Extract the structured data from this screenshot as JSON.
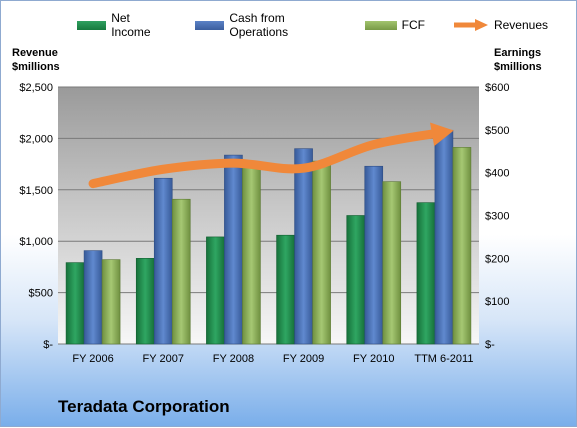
{
  "legend": [
    {
      "label": "Net Income",
      "color": "#1f8a4c"
    },
    {
      "label": "Cash from Operations",
      "color": "#4a70b4"
    },
    {
      "label": "FCF",
      "color": "#8db05a"
    },
    {
      "label": "Revenues",
      "color": "#f0883a"
    }
  ],
  "left_axis_title": [
    "Revenue",
    "$millions"
  ],
  "right_axis_title": [
    "Earnings",
    "$millions"
  ],
  "chart_data": {
    "type": "bar",
    "title": "Teradata Corporation",
    "categories": [
      "FY 2006",
      "FY 2007",
      "FY 2008",
      "FY 2009",
      "FY 2010",
      "TTM 6-2011"
    ],
    "series": [
      {
        "name": "Net Income",
        "axis": "right",
        "type": "bar",
        "color": "#1f8a4c",
        "values": [
          190,
          200,
          250,
          254,
          300,
          330
        ]
      },
      {
        "name": "Cash from Operations",
        "axis": "right",
        "type": "bar",
        "color": "#4a70b4",
        "values": [
          218,
          387,
          441,
          456,
          415,
          499
        ]
      },
      {
        "name": "FCF",
        "axis": "right",
        "type": "bar",
        "color": "#8db05a",
        "values": [
          197,
          338,
          422,
          427,
          379,
          459
        ]
      },
      {
        "name": "Revenues",
        "axis": "left",
        "type": "line",
        "color": "#f0883a",
        "values": [
          1560,
          1700,
          1760,
          1710,
          1940,
          2060
        ]
      }
    ],
    "left_axis": {
      "ylim": [
        0,
        2500
      ],
      "ticks": [
        "$-",
        "$500",
        "$1,000",
        "$1,500",
        "$2,000",
        "$2,500"
      ]
    },
    "right_axis": {
      "ylim": [
        0,
        600
      ],
      "ticks": [
        "$-",
        "$100",
        "$200",
        "$300",
        "$400",
        "$500",
        "$600"
      ]
    },
    "grid": true,
    "legend_position": "top"
  }
}
